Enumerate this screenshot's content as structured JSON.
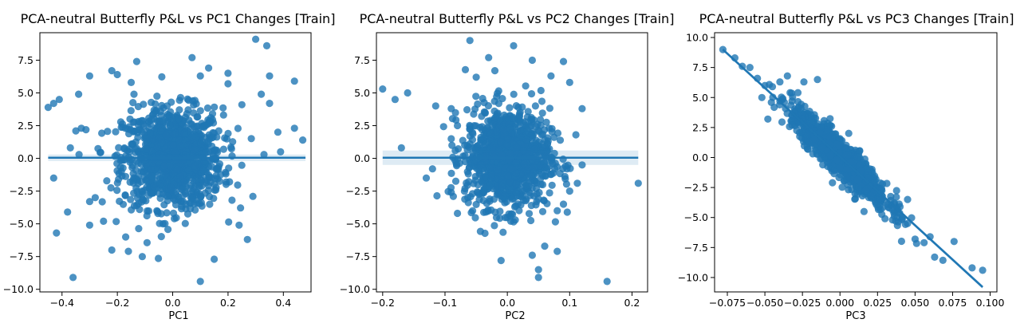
{
  "chart_data": [
    {
      "type": "scatter",
      "title": "PCA-neutral Butterfly P&L vs PC1 Changes [Train]",
      "xlabel": "PC1",
      "ylabel": "",
      "xlim": [
        -0.48,
        0.5
      ],
      "ylim": [
        -10.2,
        9.6
      ],
      "xticks": [
        -0.4,
        -0.2,
        0.0,
        0.2,
        0.4
      ],
      "xtick_labels": [
        "−0.4",
        "−0.2",
        "0.0",
        "0.2",
        "0.4"
      ],
      "yticks": [
        -10.0,
        -7.5,
        -5.0,
        -2.5,
        0.0,
        2.5,
        5.0,
        7.5
      ],
      "ytick_labels": [
        "−10.0",
        "−7.5",
        "−5.0",
        "−2.5",
        "0.0",
        "2.5",
        "5.0",
        "7.5"
      ],
      "regression": {
        "x": [
          -0.45,
          0.48
        ],
        "y": [
          0.05,
          0.05
        ],
        "ci_halfwidth": 0.25
      },
      "cluster": {
        "x_sd": 0.09,
        "y_sd": 1.9,
        "n": 1100
      },
      "points": [
        [
          -0.45,
          3.9
        ],
        [
          -0.43,
          4.2
        ],
        [
          -0.41,
          4.5
        ],
        [
          -0.43,
          -1.5
        ],
        [
          -0.42,
          -5.7
        ],
        [
          -0.38,
          -4.1
        ],
        [
          -0.37,
          0.8
        ],
        [
          -0.35,
          2.1
        ],
        [
          -0.36,
          -9.1
        ],
        [
          -0.34,
          4.9
        ],
        [
          -0.3,
          6.3
        ],
        [
          -0.3,
          -5.1
        ],
        [
          -0.28,
          -3.0
        ],
        [
          -0.22,
          -7.0
        ],
        [
          -0.22,
          6.7
        ],
        [
          -0.2,
          6.4
        ],
        [
          -0.16,
          -7.1
        ],
        [
          -0.15,
          5.8
        ],
        [
          -0.13,
          7.4
        ],
        [
          -0.11,
          -7.5
        ],
        [
          -0.17,
          -6.0
        ],
        [
          -0.3,
          -3.3
        ],
        [
          -0.33,
          2.3
        ],
        [
          -0.25,
          -4.8
        ],
        [
          -0.14,
          4.9
        ],
        [
          0.07,
          7.7
        ],
        [
          0.1,
          6.3
        ],
        [
          0.1,
          -9.4
        ],
        [
          0.13,
          6.9
        ],
        [
          0.15,
          -7.7
        ],
        [
          0.2,
          6.5
        ],
        [
          0.3,
          9.1
        ],
        [
          0.34,
          8.6
        ],
        [
          0.35,
          6.3
        ],
        [
          0.44,
          5.9
        ],
        [
          0.47,
          1.4
        ],
        [
          0.44,
          2.3
        ],
        [
          0.38,
          2.0
        ],
        [
          0.35,
          4.2
        ],
        [
          0.32,
          4.9
        ],
        [
          0.27,
          -6.2
        ],
        [
          0.24,
          -5.1
        ],
        [
          0.33,
          0.3
        ],
        [
          0.39,
          0.5
        ],
        [
          0.29,
          -2.9
        ],
        [
          0.2,
          5.7
        ],
        [
          0.25,
          4.1
        ]
      ]
    },
    {
      "type": "scatter",
      "title": "PCA-neutral Butterfly P&L vs PC2 Changes [Train]",
      "xlabel": "PC2",
      "ylabel": "",
      "xlim": [
        -0.21,
        0.225
      ],
      "ylim": [
        -10.2,
        9.6
      ],
      "xticks": [
        -0.2,
        -0.1,
        0.0,
        0.1,
        0.2
      ],
      "xtick_labels": [
        "−0.2",
        "−0.1",
        "0.0",
        "0.1",
        "0.2"
      ],
      "yticks": [
        -10.0,
        -7.5,
        -5.0,
        -2.5,
        0.0,
        2.5,
        5.0,
        7.5
      ],
      "ytick_labels": [
        "−10.0",
        "−7.5",
        "−5.0",
        "−2.5",
        "0.0",
        "2.5",
        "5.0",
        "7.5"
      ],
      "regression": {
        "x": [
          -0.2,
          0.21
        ],
        "y": [
          0.05,
          0.05
        ],
        "ci_halfwidth": 0.55
      },
      "cluster": {
        "x_sd": 0.034,
        "y_sd": 1.9,
        "n": 1100
      },
      "points": [
        [
          -0.2,
          5.3
        ],
        [
          -0.18,
          4.5
        ],
        [
          -0.16,
          5.0
        ],
        [
          -0.17,
          0.8
        ],
        [
          -0.13,
          -1.5
        ],
        [
          -0.12,
          -0.8
        ],
        [
          -0.09,
          3.8
        ],
        [
          -0.08,
          2.5
        ],
        [
          -0.09,
          -2.6
        ],
        [
          -0.06,
          9.0
        ],
        [
          -0.03,
          7.7
        ],
        [
          -0.05,
          6.2
        ],
        [
          -0.01,
          -7.8
        ],
        [
          0.01,
          8.6
        ],
        [
          0.04,
          7.5
        ],
        [
          0.04,
          -7.4
        ],
        [
          0.05,
          -8.5
        ],
        [
          0.05,
          -9.1
        ],
        [
          0.06,
          -6.7
        ],
        [
          0.08,
          -7.1
        ],
        [
          0.09,
          7.4
        ],
        [
          0.1,
          5.8
        ],
        [
          0.12,
          3.8
        ],
        [
          0.16,
          -9.4
        ],
        [
          0.21,
          -1.9
        ],
        [
          0.1,
          -2.5
        ],
        [
          0.08,
          -4.0
        ],
        [
          0.12,
          -0.5
        ],
        [
          -0.08,
          -4.2
        ],
        [
          -0.09,
          1.5
        ],
        [
          0.11,
          1.8
        ],
        [
          0.09,
          -3.5
        ],
        [
          -0.02,
          6.7
        ],
        [
          0.07,
          6.3
        ]
      ]
    },
    {
      "type": "scatter",
      "title": "PCA-neutral Butterfly P&L vs PC3 Changes [Train]",
      "xlabel": "PC3",
      "ylabel": "",
      "xlim": [
        -0.0835,
        0.1045
      ],
      "ylim": [
        -11.2,
        10.4
      ],
      "xticks": [
        -0.075,
        -0.05,
        -0.025,
        0.0,
        0.025,
        0.05,
        0.075,
        0.1
      ],
      "xtick_labels": [
        "−0.075",
        "−0.050",
        "−0.025",
        "0.000",
        "0.025",
        "0.050",
        "0.075",
        "0.100"
      ],
      "yticks": [
        -10.0,
        -7.5,
        -5.0,
        -2.5,
        0.0,
        2.5,
        5.0,
        7.5,
        10.0
      ],
      "ytick_labels": [
        "−10.0",
        "−7.5",
        "−5.0",
        "−2.5",
        "0.0",
        "2.5",
        "5.0",
        "7.5",
        "10.0"
      ],
      "regression": {
        "x": [
          -0.078,
          0.095
        ],
        "y": [
          9.0,
          -10.8
        ],
        "ci_halfwidth": 0.15
      },
      "cluster": {
        "x_sd": 0.016,
        "slope": -115,
        "noise": 0.75,
        "n": 1100
      },
      "points": [
        [
          -0.078,
          9.0
        ],
        [
          -0.07,
          8.3
        ],
        [
          -0.065,
          7.6
        ],
        [
          -0.06,
          7.5
        ],
        [
          -0.055,
          6.6
        ],
        [
          -0.05,
          6.0
        ],
        [
          -0.045,
          5.9
        ],
        [
          -0.04,
          6.3
        ],
        [
          -0.035,
          6.8
        ],
        [
          -0.028,
          5.4
        ],
        [
          -0.024,
          6.3
        ],
        [
          -0.015,
          6.5
        ],
        [
          -0.048,
          3.2
        ],
        [
          -0.032,
          2.7
        ],
        [
          -0.02,
          2.5
        ],
        [
          -0.005,
          -2.1
        ],
        [
          0.01,
          -3.0
        ],
        [
          0.016,
          -4.5
        ],
        [
          0.03,
          -5.1
        ],
        [
          0.035,
          -5.2
        ],
        [
          0.045,
          -5.5
        ],
        [
          0.05,
          -6.8
        ],
        [
          0.056,
          -7.1
        ],
        [
          0.06,
          -6.6
        ],
        [
          0.063,
          -8.3
        ],
        [
          0.076,
          -7.0
        ],
        [
          0.088,
          -9.2
        ],
        [
          0.095,
          -9.4
        ],
        [
          0.04,
          -4.1
        ],
        [
          0.045,
          -3.5
        ],
        [
          -0.052,
          5.0
        ],
        [
          -0.04,
          4.7
        ]
      ]
    }
  ]
}
